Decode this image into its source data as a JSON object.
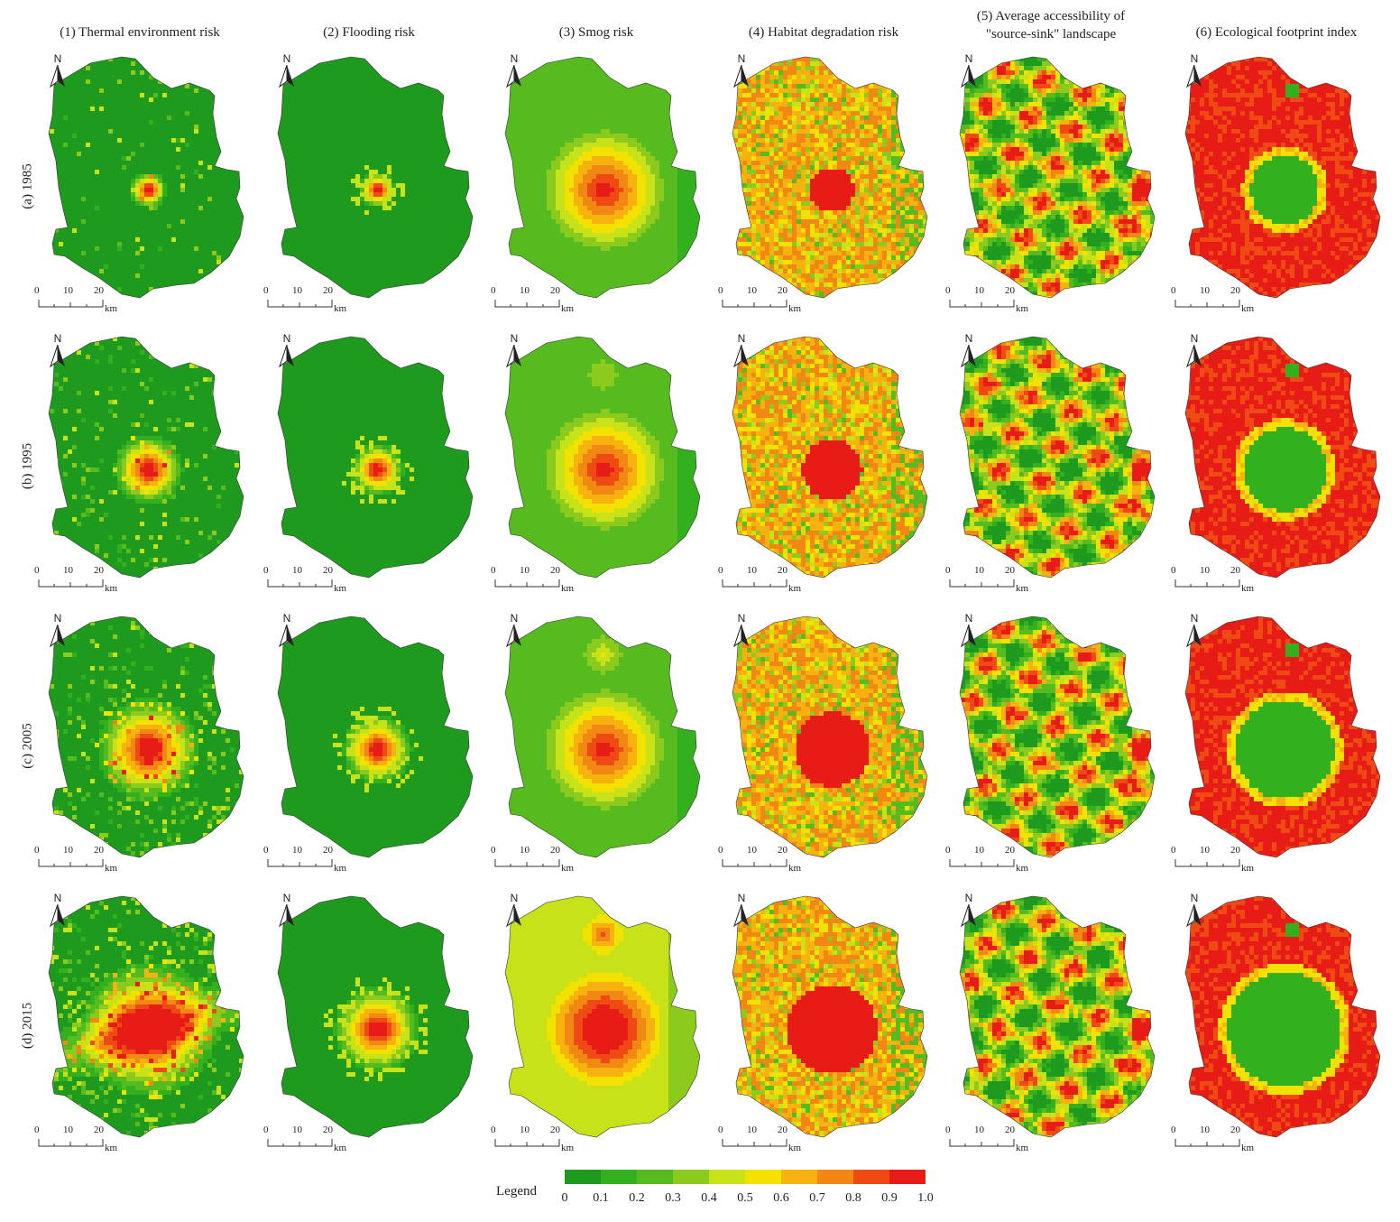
{
  "columns": [
    {
      "lines": [
        "(1) Thermal environment risk"
      ]
    },
    {
      "lines": [
        "(2) Flooding risk"
      ]
    },
    {
      "lines": [
        "(3) Smog risk"
      ]
    },
    {
      "lines": [
        "(4) Habitat degradation risk"
      ]
    },
    {
      "lines": [
        "(5) Average accessibility of",
        "\"source-sink\" landscape"
      ]
    },
    {
      "lines": [
        "(6) Ecological footprint index"
      ]
    }
  ],
  "rows": [
    {
      "label": "(a) 1985"
    },
    {
      "label": "(b) 1995"
    },
    {
      "label": "(c) 2005"
    },
    {
      "label": "(d) 2015"
    }
  ],
  "map_elements": {
    "north_arrow": "N",
    "scale_ticks": [
      "0",
      "10",
      "20"
    ],
    "scale_unit": "km"
  },
  "legend": {
    "title": "Legend",
    "ticks": [
      "0",
      "0.1",
      "0.2",
      "0.3",
      "0.4",
      "0.5",
      "0.6",
      "0.7",
      "0.8",
      "0.9",
      "1.0"
    ],
    "colors": [
      "#1e9a1e",
      "#33b01d",
      "#56bb1e",
      "#8ccb1d",
      "#c8e21a",
      "#f3e200",
      "#f7b210",
      "#f28814",
      "#ef4a14",
      "#e81c16"
    ]
  }
}
